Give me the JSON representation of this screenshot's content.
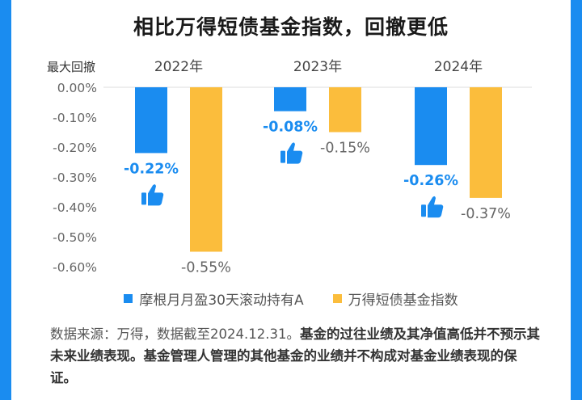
{
  "title": "相比万得短债基金指数，回撤更低",
  "colors": {
    "series_a": "#1a8cf0",
    "series_b": "#fbbd3c",
    "accent_label": "#1a8cf0",
    "background": "#1a8cf0"
  },
  "chart_data": {
    "type": "bar",
    "title": "相比万得短债基金指数，回撤更低",
    "ylabel": "最大回撤",
    "xlabel": "",
    "categories": [
      "2022年",
      "2023年",
      "2024年"
    ],
    "series": [
      {
        "name": "摩根月月盈30天滚动持有A",
        "values": [
          -0.22,
          -0.08,
          -0.26
        ],
        "labels": [
          "-0.22%",
          "-0.08%",
          "-0.26%"
        ]
      },
      {
        "name": "万得短债基金指数",
        "values": [
          -0.55,
          -0.15,
          -0.37
        ],
        "labels": [
          "-0.55%",
          "-0.15%",
          "-0.37%"
        ]
      }
    ],
    "ylim": [
      -0.6,
      0
    ],
    "yticks": [
      "0.00%",
      "-0.10%",
      "-0.20%",
      "-0.30%",
      "-0.40%",
      "-0.50%",
      "-0.60%"
    ],
    "ytick_values": [
      0,
      -0.1,
      -0.2,
      -0.3,
      -0.4,
      -0.5,
      -0.6
    ],
    "annotation_icon": "thumbs-up-icon",
    "legend_position": "bottom"
  },
  "footnote": {
    "normal": "数据来源：万得，数据截至2024.12.31。",
    "bold": "基金的过往业绩及其净值高低并不预示其未来业绩表现。基金管理人管理的其他基金的业绩并不构成对基金业绩表现的保证。"
  }
}
